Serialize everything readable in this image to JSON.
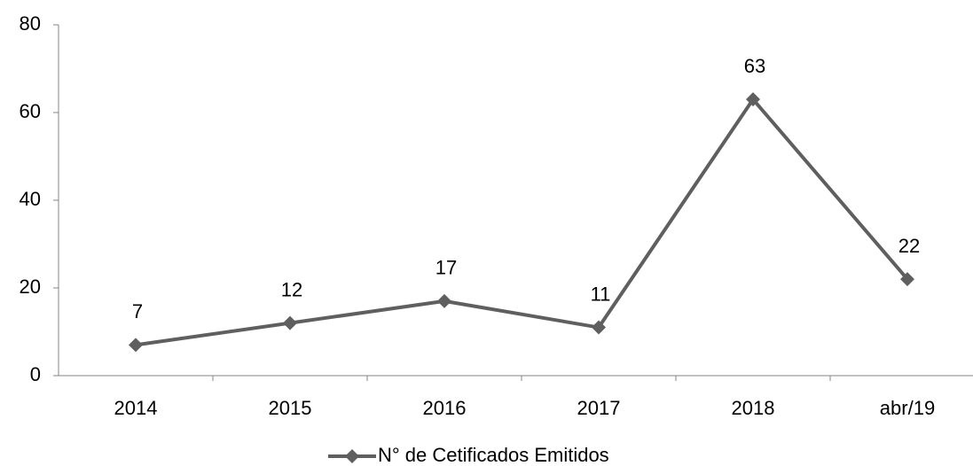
{
  "chart_data": {
    "type": "line",
    "categories": [
      "2014",
      "2015",
      "2016",
      "2017",
      "2018",
      "abr/19"
    ],
    "series": [
      {
        "name": "N° de Cetificados Emitidos",
        "color": "#5f5f5f",
        "values": [
          7,
          12,
          17,
          11,
          63,
          22
        ]
      }
    ],
    "ylim": [
      0,
      80
    ],
    "yticks": [
      0,
      20,
      40,
      60,
      80
    ],
    "grid": false,
    "legend": "bottom",
    "data_labels": true
  }
}
